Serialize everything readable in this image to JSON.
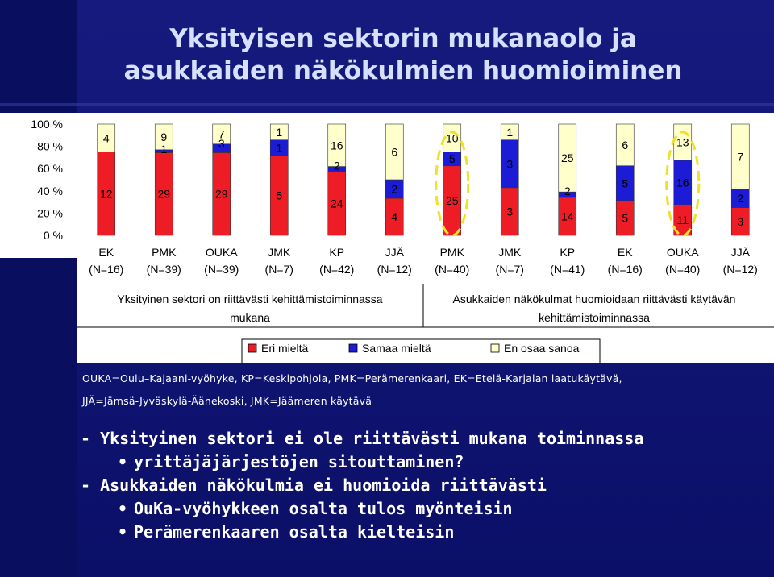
{
  "title": {
    "line1": "Yksityisen sektorin mukanaolo ja",
    "line2": "asukkaiden näkökulmien huomioiminen"
  },
  "colors": {
    "eri_mielta": "#ee1c25",
    "samaa_mielta": "#1c1cd6",
    "en_osaa_sanoa": "#ffffcc",
    "highlight": "#f0e02a"
  },
  "chart_data": {
    "type": "bar",
    "stacked": true,
    "percent": true,
    "y_ticks": [
      "100 %",
      "80 %",
      "60 %",
      "40 %",
      "20 %",
      "0 %"
    ],
    "ylim": [
      0,
      100
    ],
    "categories": [
      {
        "name": "EK",
        "n": "(N=16)"
      },
      {
        "name": "PMK",
        "n": "(N=39)"
      },
      {
        "name": "OUKA",
        "n": "(N=39)"
      },
      {
        "name": "JMK",
        "n": "(N=7)"
      },
      {
        "name": "KP",
        "n": "(N=42)"
      },
      {
        "name": "JJÄ",
        "n": "(N=12)"
      },
      {
        "name": "PMK",
        "n": "(N=40)"
      },
      {
        "name": "JMK",
        "n": "(N=7)"
      },
      {
        "name": "KP",
        "n": "(N=41)"
      },
      {
        "name": "EK",
        "n": "(N=16)"
      },
      {
        "name": "OUKA",
        "n": "(N=40)"
      },
      {
        "name": "JJÄ",
        "n": "(N=12)"
      }
    ],
    "series": [
      {
        "name": "Eri mieltä",
        "values": [
          12,
          29,
          29,
          5,
          24,
          4,
          25,
          3,
          14,
          5,
          11,
          3
        ]
      },
      {
        "name": "Samaa mieltä",
        "values": [
          0,
          1,
          3,
          1,
          2,
          2,
          5,
          3,
          2,
          5,
          16,
          2
        ]
      },
      {
        "name": "En osaa sanoa",
        "values": [
          4,
          9,
          7,
          1,
          16,
          6,
          10,
          1,
          25,
          6,
          13,
          7
        ]
      }
    ],
    "group_labels": [
      "Yksityinen sektori on riittävästi kehittämistoiminnassa mukana",
      "Asukkaiden näkökulmat huomioidaan riittävästi käytävän kehittämistoiminnassa"
    ],
    "highlighted_bars": [
      6,
      10
    ]
  },
  "group_labels_display": {
    "g1_line1": "Yksityinen sektori on riittävästi kehittämistoiminnassa",
    "g1_line2": "mukana",
    "g2_line1": "Asukkaiden näkökulmat huomioidaan riittävästi käytävän",
    "g2_line2": "kehittämistoiminnassa"
  },
  "legend": [
    "Eri mieltä",
    "Samaa mieltä",
    "En osaa sanoa"
  ],
  "abbreviations": {
    "line1": "OUKA=Oulu–Kajaani-vyöhyke, KP=Keskipohjola, PMK=Perämerenkaari, EK=Etelä-Karjalan laatukäytävä,",
    "line2": "JJÄ=Jämsä-Jyväskylä-Äänekoski,  JMK=Jäämeren käytävä"
  },
  "bullets": {
    "b1": "- Yksityinen sektori ei ole riittävästi mukana toiminnassa",
    "b1a": "yrittäjäjärjestöjen sitouttaminen?",
    "b2": "- Asukkaiden näkökulmia ei huomioida riittävästi",
    "b2a": "OuKa-vyöhykkeen osalta tulos myönteisin",
    "b2b": "Perämerenkaaren osalta kielteisin",
    "dot": "•"
  }
}
